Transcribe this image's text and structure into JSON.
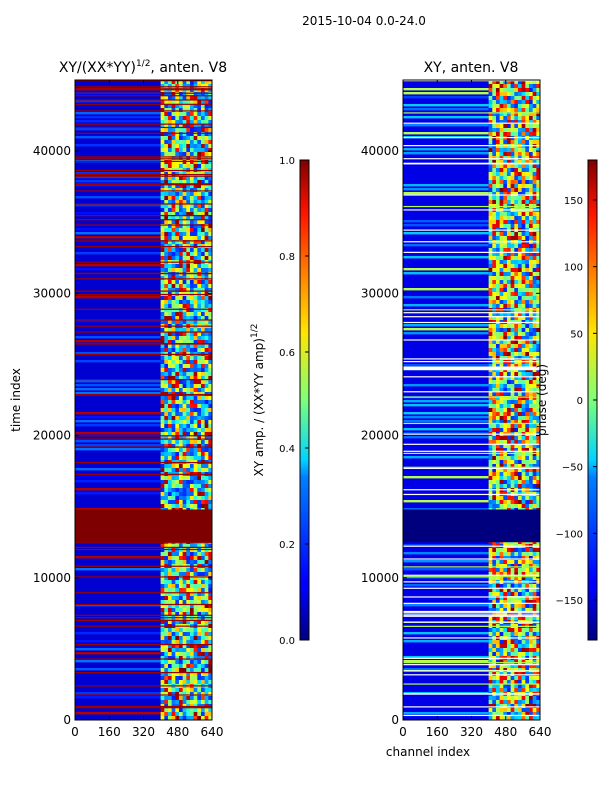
{
  "figure": {
    "supertitle": "2015-10-04 0.0-24.0"
  },
  "chart_data": [
    {
      "type": "heatmap",
      "panel": "left",
      "title_main": "XY/(XX*YY)",
      "title_sup": "1/2",
      "title_tail": ", anten. V8",
      "xlabel": "",
      "ylabel": "time index",
      "x_ticks": [
        0,
        160,
        320,
        480,
        640
      ],
      "y_ticks": [
        0,
        10000,
        20000,
        30000,
        40000
      ],
      "xlim": [
        0,
        640
      ],
      "ylim": [
        0,
        45000
      ],
      "colorbar": {
        "label_main": "XY amp. / (XX*YY amp)",
        "label_sup": "1/2",
        "ticks": [
          "0.0",
          "0.2",
          "0.4",
          "0.6",
          "0.8",
          "1.0"
        ],
        "range": [
          0.0,
          1.0
        ]
      },
      "features": {
        "active_channel_band": [
          400,
          640
        ],
        "saturated_block_time": [
          12500,
          14800
        ],
        "background_value": 0.05
      }
    },
    {
      "type": "heatmap",
      "panel": "right",
      "title_main": "XY, anten. V8",
      "title_sup": "",
      "title_tail": "",
      "xlabel": "channel index",
      "ylabel": "",
      "x_ticks": [
        0,
        160,
        320,
        480,
        640
      ],
      "y_ticks": [
        0,
        10000,
        20000,
        30000,
        40000
      ],
      "xlim": [
        0,
        640
      ],
      "ylim": [
        0,
        45000
      ],
      "colorbar": {
        "label_main": "phase (deg)",
        "label_sup": "",
        "ticks": [
          "150",
          "100",
          "50",
          "0",
          "−50",
          "−100",
          "−150"
        ],
        "tick_values": [
          150,
          100,
          50,
          0,
          -50,
          -100,
          -150
        ],
        "range": [
          -180,
          180
        ]
      },
      "features": {
        "active_channel_band": [
          400,
          640
        ],
        "flagged_block_time": [
          12500,
          14800
        ],
        "background_value": -150
      }
    }
  ]
}
